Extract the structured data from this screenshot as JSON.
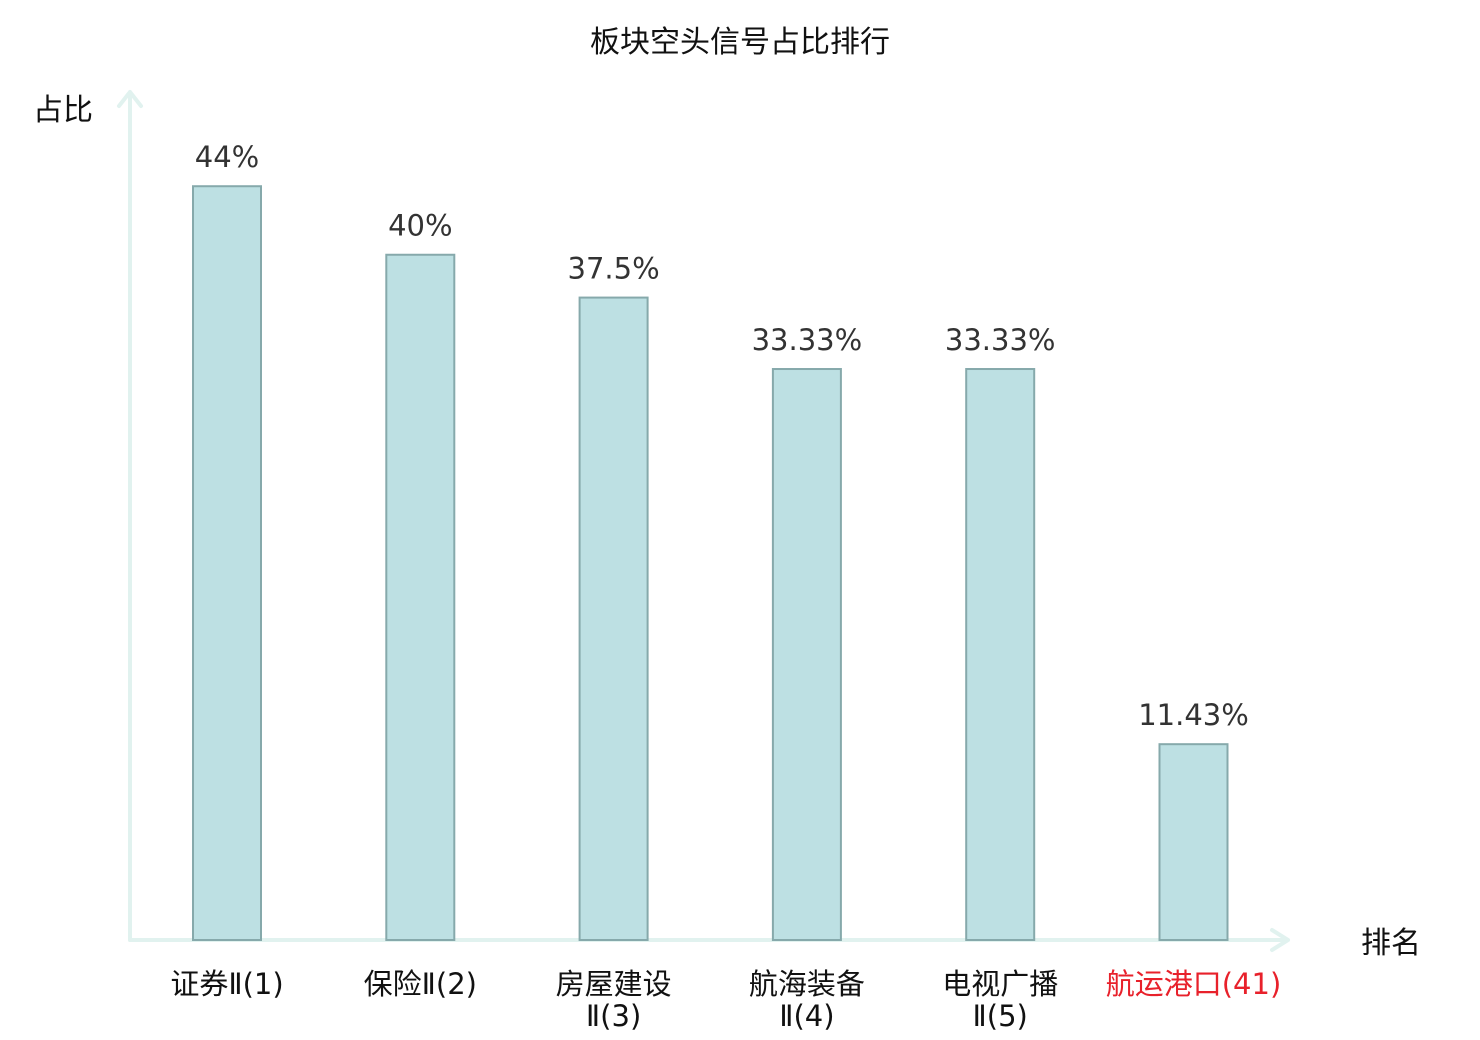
{
  "chart_data": {
    "type": "bar",
    "title": "板块空头信号占比排行",
    "ylabel": "占比",
    "xlabel": "排名",
    "ylim": [
      0,
      49.5
    ],
    "grid": false,
    "legend": "none",
    "categories": [
      [
        "证券Ⅱ(1)"
      ],
      [
        "保险Ⅱ(2)"
      ],
      [
        "房屋建设",
        "Ⅱ(3)"
      ],
      [
        "航海装备",
        "Ⅱ(4)"
      ],
      [
        "电视广播",
        "Ⅱ(5)"
      ],
      [
        "航运港口(41)"
      ]
    ],
    "values": [
      44,
      40,
      37.5,
      33.33,
      33.33,
      11.43
    ],
    "value_labels": [
      "44%",
      "40%",
      "37.5%",
      "33.33%",
      "33.33%",
      "11.43%"
    ],
    "highlight_index": 5
  },
  "colors": {
    "bar_fill": "#bde0e3",
    "bar_stroke": "#86a9ab",
    "axis": "#e1f2ef",
    "highlight": "#e8212b",
    "text": "#111111",
    "value_text": "#333333"
  }
}
